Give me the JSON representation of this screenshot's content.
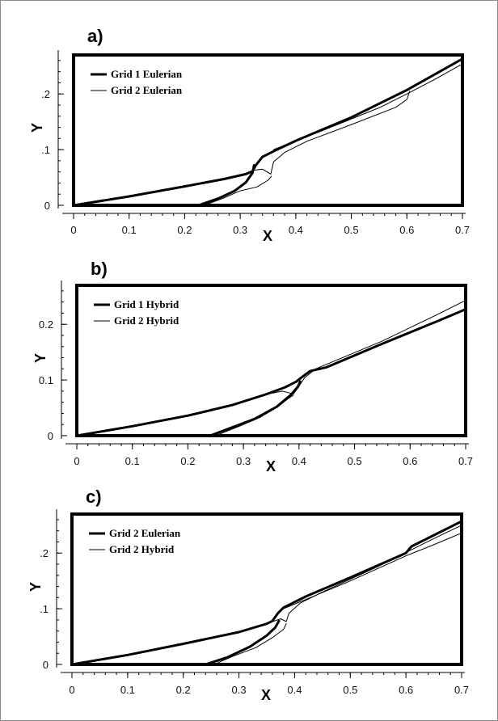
{
  "chart_data": [
    {
      "type": "line",
      "panel_label": "a)",
      "xlabel": "X",
      "ylabel": "Y",
      "xlim": [
        0,
        0.7
      ],
      "ylim": [
        0,
        0.27
      ],
      "xticks": [
        "0",
        "0.1",
        "0.2",
        "0.3",
        "0.4",
        "0.5",
        "0.6",
        "0.7"
      ],
      "yticks": [
        {
          "value": 0,
          "label": "0"
        },
        {
          "value": 0.1,
          "label": ".1"
        },
        {
          "value": 0.2,
          "label": ".2"
        }
      ],
      "legend_position": "top-left",
      "series": [
        {
          "name": "Grid 1 Eulerian",
          "style": "thick",
          "curves": [
            [
              [
                0,
                0
              ],
              [
                0.1,
                0.016
              ],
              [
                0.2,
                0.034
              ],
              [
                0.27,
                0.047
              ],
              [
                0.31,
                0.056
              ],
              [
                0.322,
                0.061
              ],
              [
                0.328,
                0.072
              ],
              [
                0.34,
                0.087
              ],
              [
                0.36,
                0.097
              ],
              [
                0.4,
                0.116
              ],
              [
                0.5,
                0.158
              ],
              [
                0.6,
                0.207
              ],
              [
                0.7,
                0.263
              ]
            ],
            [
              [
                0.225,
                0
              ],
              [
                0.26,
                0.012
              ],
              [
                0.29,
                0.026
              ],
              [
                0.31,
                0.041
              ],
              [
                0.322,
                0.058
              ],
              [
                0.325,
                0.072
              ]
            ]
          ]
        },
        {
          "name": "Grid 2 Eulerian",
          "style": "thin",
          "curves": [
            [
              [
                0,
                0
              ],
              [
                0.1,
                0.016
              ],
              [
                0.2,
                0.034
              ],
              [
                0.27,
                0.047
              ],
              [
                0.31,
                0.056
              ],
              [
                0.325,
                0.063
              ],
              [
                0.34,
                0.065
              ],
              [
                0.355,
                0.056
              ],
              [
                0.36,
                0.078
              ],
              [
                0.38,
                0.095
              ],
              [
                0.42,
                0.115
              ],
              [
                0.5,
                0.145
              ],
              [
                0.58,
                0.176
              ],
              [
                0.6,
                0.19
              ],
              [
                0.605,
                0.205
              ]
            ],
            [
              [
                0.235,
                0
              ],
              [
                0.27,
                0.013
              ],
              [
                0.3,
                0.026
              ],
              [
                0.33,
                0.033
              ],
              [
                0.35,
                0.045
              ],
              [
                0.356,
                0.052
              ]
            ],
            [
              [
                0.36,
                0.1
              ],
              [
                0.45,
                0.135
              ],
              [
                0.55,
                0.175
              ],
              [
                0.6,
                0.2
              ],
              [
                0.65,
                0.226
              ],
              [
                0.7,
                0.254
              ]
            ]
          ]
        }
      ]
    },
    {
      "type": "line",
      "panel_label": "b)",
      "xlabel": "X",
      "ylabel": "Y",
      "xlim": [
        0,
        0.7
      ],
      "ylim": [
        0,
        0.27
      ],
      "xticks": [
        "0",
        "0.1",
        "0.2",
        "0.3",
        "0.4",
        "0.5",
        "0.6",
        "0.7"
      ],
      "yticks": [
        {
          "value": 0,
          "label": "0"
        },
        {
          "value": 0.1,
          "label": "0.1"
        },
        {
          "value": 0.2,
          "label": "0.2"
        }
      ],
      "legend_position": "top-left",
      "series": [
        {
          "name": "Grid 1 Hybrid",
          "style": "thick",
          "curves": [
            [
              [
                0,
                0
              ],
              [
                0.1,
                0.017
              ],
              [
                0.2,
                0.036
              ],
              [
                0.28,
                0.055
              ],
              [
                0.34,
                0.074
              ],
              [
                0.375,
                0.087
              ],
              [
                0.395,
                0.097
              ],
              [
                0.405,
                0.105
              ],
              [
                0.42,
                0.116
              ],
              [
                0.45,
                0.123
              ],
              [
                0.55,
                0.165
              ],
              [
                0.65,
                0.206
              ],
              [
                0.7,
                0.227
              ]
            ],
            [
              [
                0.24,
                0
              ],
              [
                0.28,
                0.015
              ],
              [
                0.32,
                0.03
              ],
              [
                0.36,
                0.052
              ],
              [
                0.385,
                0.073
              ],
              [
                0.398,
                0.088
              ],
              [
                0.402,
                0.097
              ]
            ]
          ]
        },
        {
          "name": "Grid 2 Hybrid",
          "style": "thin",
          "curves": [
            [
              [
                0,
                0
              ],
              [
                0.1,
                0.017
              ],
              [
                0.2,
                0.036
              ],
              [
                0.28,
                0.055
              ],
              [
                0.33,
                0.072
              ],
              [
                0.37,
                0.08
              ],
              [
                0.39,
                0.075
              ],
              [
                0.398,
                0.086
              ],
              [
                0.41,
                0.104
              ],
              [
                0.43,
                0.12
              ],
              [
                0.55,
                0.17
              ],
              [
                0.65,
                0.218
              ],
              [
                0.7,
                0.243
              ]
            ],
            [
              [
                0.25,
                0
              ],
              [
                0.29,
                0.016
              ],
              [
                0.33,
                0.033
              ],
              [
                0.36,
                0.051
              ],
              [
                0.38,
                0.066
              ],
              [
                0.39,
                0.073
              ]
            ]
          ]
        }
      ]
    },
    {
      "type": "line",
      "panel_label": "c)",
      "xlabel": "X",
      "ylabel": "Y",
      "xlim": [
        0,
        0.7
      ],
      "ylim": [
        0,
        0.27
      ],
      "xticks": [
        "0",
        "0.1",
        "0.2",
        "0.3",
        "0.4",
        "0.5",
        "0.6",
        "0.7"
      ],
      "yticks": [
        {
          "value": 0,
          "label": "0"
        },
        {
          "value": 0.1,
          "label": ".1"
        },
        {
          "value": 0.2,
          "label": ".2"
        }
      ],
      "legend_position": "top-left",
      "series": [
        {
          "name": "Grid 2 Eulerian",
          "style": "thick",
          "curves": [
            [
              [
                0,
                0
              ],
              [
                0.1,
                0.017
              ],
              [
                0.2,
                0.037
              ],
              [
                0.3,
                0.058
              ],
              [
                0.35,
                0.073
              ],
              [
                0.36,
                0.078
              ],
              [
                0.37,
                0.092
              ],
              [
                0.38,
                0.102
              ],
              [
                0.42,
                0.122
              ],
              [
                0.5,
                0.156
              ],
              [
                0.6,
                0.2
              ],
              [
                0.61,
                0.212
              ],
              [
                0.7,
                0.257
              ]
            ],
            [
              [
                0.24,
                0
              ],
              [
                0.28,
                0.013
              ],
              [
                0.32,
                0.032
              ],
              [
                0.35,
                0.052
              ],
              [
                0.365,
                0.066
              ],
              [
                0.372,
                0.078
              ]
            ]
          ]
        },
        {
          "name": "Grid 2 Hybrid",
          "style": "thin",
          "curves": [
            [
              [
                0,
                0
              ],
              [
                0.1,
                0.017
              ],
              [
                0.2,
                0.037
              ],
              [
                0.3,
                0.058
              ],
              [
                0.35,
                0.073
              ],
              [
                0.375,
                0.082
              ],
              [
                0.385,
                0.077
              ],
              [
                0.39,
                0.092
              ],
              [
                0.41,
                0.11
              ],
              [
                0.45,
                0.13
              ],
              [
                0.55,
                0.176
              ],
              [
                0.65,
                0.226
              ],
              [
                0.7,
                0.25
              ]
            ],
            [
              [
                0.255,
                0
              ],
              [
                0.29,
                0.015
              ],
              [
                0.33,
                0.03
              ],
              [
                0.36,
                0.048
              ],
              [
                0.38,
                0.063
              ],
              [
                0.385,
                0.073
              ]
            ],
            [
              [
                0.38,
                0.1
              ],
              [
                0.5,
                0.15
              ],
              [
                0.6,
                0.195
              ],
              [
                0.65,
                0.215
              ],
              [
                0.7,
                0.236
              ]
            ]
          ]
        }
      ]
    }
  ]
}
